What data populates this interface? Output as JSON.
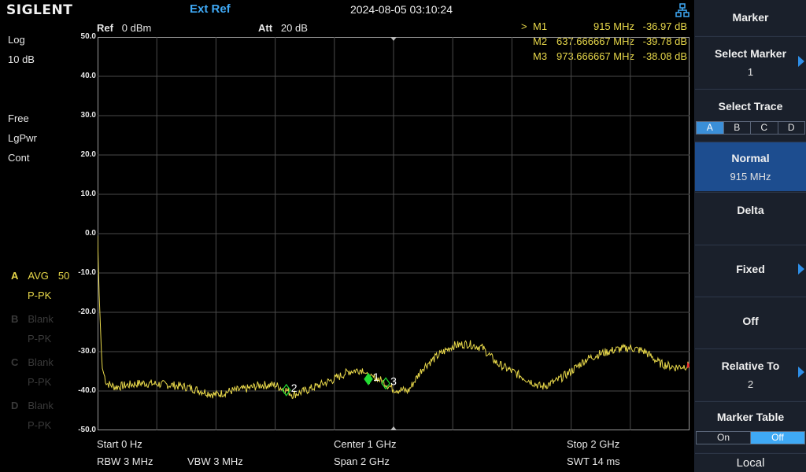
{
  "header": {
    "logo": "SIGLENT",
    "ref_source": "Ext Ref",
    "datetime": "2024-08-05 03:10:24"
  },
  "params": {
    "ref_label": "Ref",
    "ref_value": "0 dBm",
    "att_label": "Att",
    "att_value": "20 dB"
  },
  "markers": [
    {
      "prefix": ">",
      "name": "M1",
      "freq": "915 MHz",
      "level": "-36.97 dB"
    },
    {
      "prefix": "",
      "name": "M2",
      "freq": "637.666667 MHz",
      "level": "-39.78 dB"
    },
    {
      "prefix": "",
      "name": "M3",
      "freq": "973.666667 MHz",
      "level": "-38.08 dB"
    }
  ],
  "left": {
    "scale_type": "Log",
    "scale_div": "10 dB",
    "trig": "Free",
    "det": "LgPwr",
    "sweep": "Cont"
  },
  "traces": [
    {
      "letter": "A",
      "mode": "AVG",
      "count": "50",
      "det": "P-PK",
      "active": true
    },
    {
      "letter": "B",
      "mode": "Blank",
      "count": "",
      "det": "P-PK",
      "active": false
    },
    {
      "letter": "C",
      "mode": "Blank",
      "count": "",
      "det": "P-PK",
      "active": false
    },
    {
      "letter": "D",
      "mode": "Blank",
      "count": "",
      "det": "P-PK",
      "active": false
    }
  ],
  "y_ticks": [
    "50.0",
    "40.0",
    "30.0",
    "20.0",
    "10.0",
    "0.0",
    "-10.0",
    "-20.0",
    "-30.0",
    "-40.0",
    "-50.0"
  ],
  "bottom": {
    "start": "Start  0 Hz",
    "center": "Center  1 GHz",
    "stop": "Stop  2 GHz",
    "rbw": "RBW  3 MHz",
    "vbw": "VBW  3 MHz",
    "span": "Span   2 GHz",
    "swt": "SWT  14 ms"
  },
  "panel": {
    "title": "Marker",
    "select_marker": "Select Marker",
    "select_marker_value": "1",
    "select_trace": "Select Trace",
    "trace_opts": [
      "A",
      "B",
      "C",
      "D"
    ],
    "trace_selected": "A",
    "normal": "Normal",
    "normal_value": "915 MHz",
    "delta": "Delta",
    "fixed": "Fixed",
    "off": "Off",
    "relative_to": "Relative To",
    "relative_value": "2",
    "marker_table": "Marker Table",
    "table_on": "On",
    "table_off": "Off",
    "local": "Local"
  },
  "marker_labels": [
    "1",
    "2",
    "3"
  ],
  "colors": {
    "trace": "#e8d84a",
    "marker": "#22dd33",
    "accent": "#3fa9f5",
    "active_button": "#1d4d8f"
  },
  "chart_data": {
    "type": "line",
    "x_unit": "GHz",
    "xlim": [
      0,
      2
    ],
    "ylim": [
      -50,
      50
    ],
    "y_unit": "dBm",
    "series": [
      {
        "x": [
          0,
          0.005,
          0.015,
          0.03,
          0.06,
          0.1,
          0.15,
          0.2,
          0.25,
          0.3,
          0.35,
          0.4,
          0.45,
          0.5,
          0.55,
          0.6,
          0.638,
          0.66,
          0.7,
          0.75,
          0.8,
          0.85,
          0.9,
          0.915,
          0.94,
          0.973,
          1.0,
          1.05,
          1.1,
          1.15,
          1.2,
          1.25,
          1.3,
          1.35,
          1.4,
          1.45,
          1.5,
          1.55,
          1.6,
          1.65,
          1.7,
          1.75,
          1.8,
          1.85,
          1.9,
          1.95,
          2.0
        ],
        "y": [
          -0.5,
          -15,
          -34,
          -38,
          -39,
          -38.5,
          -38,
          -38.2,
          -38.5,
          -39,
          -40,
          -41,
          -40,
          -39.5,
          -38.5,
          -38.5,
          -39.8,
          -41,
          -40,
          -38.5,
          -37,
          -35,
          -34.5,
          -37,
          -36.5,
          -38.1,
          -39.5,
          -40,
          -34,
          -31,
          -28.5,
          -28,
          -29,
          -33,
          -35,
          -37,
          -39,
          -37.5,
          -35,
          -32,
          -30.5,
          -29.5,
          -29,
          -30,
          -33,
          -34,
          -33.5
        ]
      }
    ],
    "markers": [
      {
        "id": "1",
        "x": 0.915,
        "y": -36.97
      },
      {
        "id": "2",
        "x": 0.637666667,
        "y": -39.78
      },
      {
        "id": "3",
        "x": 0.973666667,
        "y": -38.08
      }
    ]
  }
}
